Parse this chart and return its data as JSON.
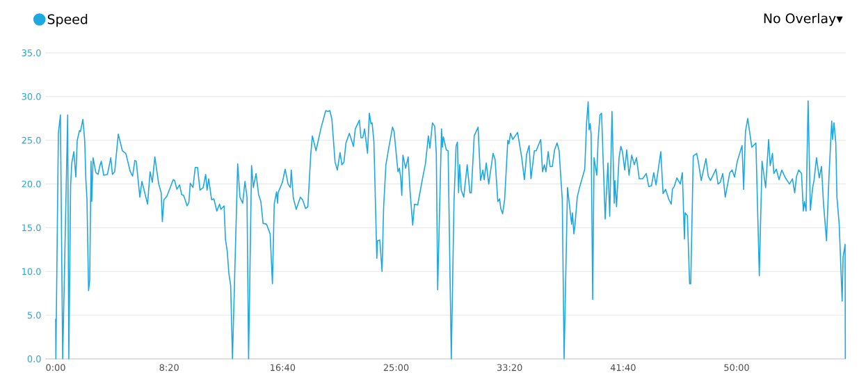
{
  "chart_data": {
    "type": "line",
    "annotations": [
      "No Overlay▾"
    ],
    "x": [
      0,
      1,
      12,
      21,
      31,
      53,
      58,
      66,
      71,
      80,
      89,
      95,
      105,
      109,
      120,
      128,
      133,
      138,
      145,
      150,
      156,
      159,
      165,
      177,
      187,
      194,
      201,
      212,
      228,
      243,
      250,
      260,
      276,
      294,
      309,
      329,
      339,
      349,
      355,
      371,
      380,
      405,
      416,
      426,
      437,
      454,
      465,
      470,
      477,
      490,
      518,
      524,
      534,
      546,
      555,
      564,
      579,
      587,
      593,
      605,
      615,
      625,
      636,
      650,
      661,
      667,
      674,
      687,
      697,
      710,
      722,
      728,
      742,
      748,
      756,
      763,
      771,
      779,
      802,
      812,
      824,
      834,
      843,
      850,
      863,
      871,
      883,
      894,
      904,
      914,
      929,
      945,
      955,
      963,
      973,
      978,
      980,
      999,
      1011,
      1024,
      1034,
      1038,
      1047,
      1060,
      1078,
      1088,
      1101,
      1111,
      1124,
      1131,
      1147,
      1170,
      1190,
      1200,
      1208,
      1217,
      1231,
      1241,
      1253,
      1261,
      1270,
      1279,
      1294,
      1312,
      1320,
      1338,
      1345,
      1353,
      1361,
      1374,
      1382,
      1389,
      1394,
      1402,
      1415,
      1418,
      1428,
      1438,
      1445,
      1455,
      1466,
      1484,
      1491,
      1508,
      1514,
      1520,
      1525,
      1530,
      1542,
      1553,
      1561,
      1573,
      1581,
      1595,
      1616,
      1629,
      1642,
      1649,
      1660,
      1670,
      1677,
      1683,
      1700,
      1704,
      1708,
      1721,
      1729,
      1743,
      1755,
      1764,
      1770,
      1775,
      1780,
      1787,
      1798,
      1813,
      1825,
      1831,
      1844,
      1861,
      1872,
      1882,
      1888,
      1897,
      1908,
      1927,
      1936,
      1948,
      1956,
      1961,
      1969,
      1978,
      1992,
      1997,
      2004,
      2014,
      2035,
      2053,
      2065,
      2075,
      2086,
      2094,
      2109,
      2117,
      2137,
      2145,
      2153,
      2160,
      2170,
      2178,
      2188,
      2198,
      2209,
      2218,
      2232,
      2240,
      2255,
      2273,
      2277,
      2283,
      2288,
      2298,
      2307,
      2331,
      2339,
      2346,
      2350,
      2355,
      2359,
      2366,
      2372,
      2384,
      2390,
      2398,
      2405,
      2421,
      2433,
      2441,
      2451,
      2461,
      2464,
      2471,
      2482,
      2490,
      2497,
      2507,
      2516,
      2526,
      2538,
      2549,
      2559,
      2571,
      2586,
      2602,
      2613,
      2625,
      2635,
      2645,
      2666,
      2676,
      2687,
      2702,
      2712,
      2717,
      2725,
      2737,
      2752,
      2761,
      2770,
      2773,
      2783,
      2793,
      2798,
      2809,
      2824,
      2831,
      2844,
      2865,
      2875,
      2885,
      2909,
      2918,
      2928,
      2939,
      2950,
      2970,
      2980,
      2991,
      3003,
      3024,
      3031,
      3039,
      3049,
      3067,
      3085,
      3100,
      3112,
      3128,
      3141,
      3148,
      3158,
      3164,
      3175,
      3187,
      3199,
      3215,
      3233,
      3246,
      3256,
      3264,
      3274,
      3286,
      3294,
      3299,
      3306,
      3315,
      3325,
      3335,
      3341,
      3352,
      3364,
      3374,
      3383,
      3396,
      3407,
      3419,
      3423,
      3429,
      3437,
      3442,
      3452,
      3465,
      3469,
      3478,
      3479
    ],
    "series": [
      {
        "name": "Speed",
        "color": "#1ea8e0",
        "values": [
          4.6,
          0,
          25.8,
          27.9,
          0,
          27.9,
          0,
          19.8,
          22.4,
          23.7,
          20.8,
          25.0,
          26.1,
          26.0,
          27.4,
          25.0,
          20.6,
          18.2,
          7.8,
          9.0,
          22.6,
          18.0,
          23.0,
          21.3,
          21.1,
          22.0,
          22.6,
          21.0,
          21.1,
          23.0,
          21.1,
          21.4,
          25.7,
          23.8,
          23.5,
          21.4,
          20.9,
          22.7,
          22.6,
          18.5,
          20.3,
          17.7,
          21.4,
          20.2,
          23.1,
          20.0,
          19.0,
          15.7,
          18.2,
          18.6,
          20.5,
          20.4,
          19.4,
          19.9,
          18.8,
          18.7,
          17.5,
          17.9,
          20.1,
          19.6,
          21.9,
          21.9,
          19.3,
          19.6,
          21.1,
          19.3,
          20.6,
          18.2,
          18.3,
          16.9,
          17.7,
          17.1,
          17.5,
          13.7,
          12.3,
          9.8,
          8.4,
          0,
          22.3,
          18.5,
          17.8,
          20.3,
          18.5,
          0,
          22.1,
          19.6,
          21.2,
          18.8,
          18.0,
          15.5,
          15.4,
          14.3,
          8.6,
          17.7,
          19.1,
          17.8,
          19.0,
          20.2,
          21.7,
          20.0,
          19.6,
          21.6,
          18.4,
          17.1,
          18.5,
          18.2,
          17.2,
          17.4,
          23.4,
          25.5,
          23.8,
          26.5,
          28.4,
          28.3,
          28.4,
          27.4,
          22.5,
          21.6,
          23.6,
          22.2,
          22.5,
          24.7,
          25.8,
          24.3,
          26.3,
          27.3,
          25.3,
          25.3,
          26.3,
          23.5,
          28.1,
          26.9,
          27.0,
          24.9,
          11.5,
          13.5,
          13.6,
          10.0,
          17.4,
          22.2,
          23.9,
          26.5,
          26.0,
          21.4,
          21.8,
          20.8,
          18.7,
          23.3,
          21.8,
          23.1,
          19.3,
          15.3,
          17.7,
          17.6,
          20.6,
          22.3,
          25.5,
          24.1,
          27.0,
          26.6,
          23.5,
          7.9,
          26.3,
          24.2,
          25.4,
          23.9,
          23.8,
          0,
          18.0,
          24.3,
          24.8,
          19.0,
          22.2,
          19.3,
          18.5,
          22.2,
          19.0,
          19.0,
          25.5,
          26.5,
          20.4,
          21.6,
          20.5,
          22.4,
          20.0,
          23.5,
          22.8,
          18.0,
          18.3,
          17.2,
          16.6,
          18.2,
          25.0,
          24.6,
          25.8,
          25.1,
          25.9,
          23.1,
          20.5,
          23.4,
          24.4,
          20.6,
          23.8,
          23.8,
          25.1,
          21.4,
          22.2,
          21.4,
          23.7,
          22.0,
          22.0,
          23.9,
          24.7,
          23.8,
          18.2,
          0,
          19.6,
          15.4,
          16.7,
          14.3,
          15.3,
          18.5,
          19.5,
          21.7,
          27.0,
          29.4,
          26.2,
          26.9,
          25.7,
          6.8,
          23.0,
          21.0,
          25.1,
          27.9,
          28.1,
          16.0,
          22.4,
          16.3,
          28.3,
          17.8,
          20.4,
          17.4,
          23.0,
          24.3,
          23.7,
          21.6,
          23.9,
          21.0,
          23.3,
          22.2,
          23.0,
          20.6,
          20.6,
          21.2,
          19.7,
          19.8,
          21.3,
          19.9,
          23.7,
          18.9,
          19.4,
          18.2,
          17.7,
          19.4,
          19.7,
          20.7,
          20.0,
          21.3,
          13.7,
          16.7,
          16.4,
          8.6,
          8.6,
          23.2,
          23.5,
          22.6,
          20.4,
          22.9,
          20.9,
          20.4,
          21.7,
          20.0,
          20.2,
          21.2,
          18.5,
          21.3,
          21.6,
          20.8,
          22.6,
          24.4,
          19.4,
          26.0,
          27.5,
          24.2,
          24.7,
          9.5,
          22.6,
          19.6,
          25.1,
          22.1,
          23.5,
          21.2,
          21.7,
          20.5,
          21.6,
          20.7,
          20.0,
          20.6,
          19.0,
          20.9,
          21.6,
          21.2,
          16.9,
          18.0,
          16.9,
          29.5,
          17.0,
          19.6,
          20.4,
          23.0,
          20.7,
          22.0,
          17.7,
          13.5,
          20.9,
          27.2,
          25.1,
          27.0,
          24.7,
          18.5,
          15.4,
          6.6,
          11.6,
          13.1,
          0
        ]
      }
    ],
    "xlim": [
      -46,
      3481
    ],
    "xticks": [
      {
        "value": 0,
        "label": "0:00"
      },
      {
        "value": 500,
        "label": "8:20"
      },
      {
        "value": 1000,
        "label": "16:40"
      },
      {
        "value": 1500,
        "label": "25:00"
      },
      {
        "value": 2000,
        "label": "33:20"
      },
      {
        "value": 2500,
        "label": "41:40"
      },
      {
        "value": 3000,
        "label": "50:00"
      }
    ],
    "ylim": [
      0,
      35
    ],
    "yticks": [
      {
        "value": 0,
        "label": "0.0"
      },
      {
        "value": 5,
        "label": "5.0"
      },
      {
        "value": 10,
        "label": "10.0"
      },
      {
        "value": 15,
        "label": "15.0"
      },
      {
        "value": 20,
        "label": "20.0"
      },
      {
        "value": 25,
        "label": "25.0"
      },
      {
        "value": 30,
        "label": "30.0"
      },
      {
        "value": 35,
        "label": "35.0"
      }
    ],
    "grid": "y",
    "legend": "top left"
  }
}
